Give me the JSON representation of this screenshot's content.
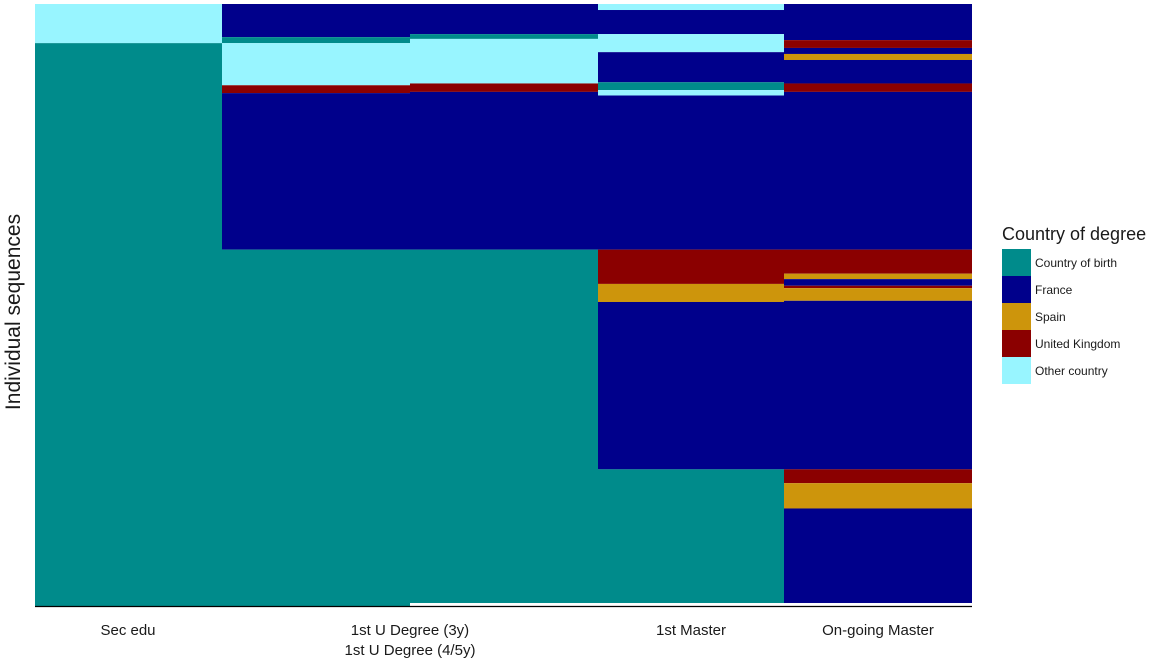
{
  "chart_data": {
    "type": "heatmap",
    "title": "",
    "ylabel": "Individual sequences",
    "xlabel": "",
    "x_ticks": [
      {
        "lines": [
          "Sec edu"
        ]
      },
      {
        "lines": [
          "1st U Degree (3y)",
          "1st U Degree (4/5y)"
        ]
      },
      {
        "lines": [
          "1st Master"
        ]
      },
      {
        "lines": [
          "On-going Master"
        ]
      }
    ],
    "legend": {
      "title": "Country of degree",
      "position": "right",
      "entries": [
        {
          "label": "Country of birth",
          "color": "#008B8B"
        },
        {
          "label": "France",
          "color": "#00008B"
        },
        {
          "label": "Spain",
          "color": "#CD950C"
        },
        {
          "label": "United Kingdom",
          "color": "#8B0000"
        },
        {
          "label": "Other country",
          "color": "#98F5FF"
        }
      ]
    },
    "colors": {
      "Country of birth": "#008B8B",
      "France": "#00008B",
      "Spain": "#CD950C",
      "United Kingdom": "#8B0000",
      "Other country": "#98F5FF"
    },
    "columns": [
      {
        "name": "Sec edu",
        "segments": [
          {
            "category": "Other country",
            "from": 0,
            "to": 6.5
          },
          {
            "category": "Country of birth",
            "from": 6.5,
            "to": 100
          }
        ]
      },
      {
        "name": "1st U Degree (3y)",
        "segments": [
          {
            "category": "France",
            "from": 0,
            "to": 5.5
          },
          {
            "category": "Country of birth",
            "from": 5.5,
            "to": 6.5
          },
          {
            "category": "Other country",
            "from": 6.5,
            "to": 13.5
          },
          {
            "category": "United Kingdom",
            "from": 13.5,
            "to": 14.8
          },
          {
            "category": "France",
            "from": 14.8,
            "to": 40.8
          },
          {
            "category": "Country of birth",
            "from": 40.8,
            "to": 100
          }
        ]
      },
      {
        "name": "1st U Degree (4/5y)",
        "segments": [
          {
            "category": "France",
            "from": 0,
            "to": 5.0
          },
          {
            "category": "Country of birth",
            "from": 5.0,
            "to": 5.8
          },
          {
            "category": "Other country",
            "from": 5.8,
            "to": 13.2
          },
          {
            "category": "United Kingdom",
            "from": 13.2,
            "to": 14.6
          },
          {
            "category": "France",
            "from": 14.6,
            "to": 40.8
          },
          {
            "category": "Country of birth",
            "from": 40.8,
            "to": 99.5
          }
        ]
      },
      {
        "name": "1st Master",
        "segments": [
          {
            "category": "Other country",
            "from": 0,
            "to": 1.0
          },
          {
            "category": "France",
            "from": 1.0,
            "to": 5.0
          },
          {
            "category": "Other country",
            "from": 5.0,
            "to": 8.0
          },
          {
            "category": "France",
            "from": 8.0,
            "to": 13.0
          },
          {
            "category": "Country of birth",
            "from": 13.0,
            "to": 14.3
          },
          {
            "category": "Other country",
            "from": 14.3,
            "to": 15.2
          },
          {
            "category": "France",
            "from": 15.2,
            "to": 40.8
          },
          {
            "category": "United Kingdom",
            "from": 40.8,
            "to": 46.5
          },
          {
            "category": "Spain",
            "from": 46.5,
            "to": 49.5
          },
          {
            "category": "France",
            "from": 49.5,
            "to": 77.3
          },
          {
            "category": "Country of birth",
            "from": 77.3,
            "to": 99.5
          }
        ]
      },
      {
        "name": "On-going Master",
        "segments": [
          {
            "category": "France",
            "from": 0,
            "to": 6.0
          },
          {
            "category": "United Kingdom",
            "from": 6.0,
            "to": 7.3
          },
          {
            "category": "France",
            "from": 7.3,
            "to": 8.3
          },
          {
            "category": "Spain",
            "from": 8.3,
            "to": 9.3
          },
          {
            "category": "France",
            "from": 9.3,
            "to": 13.2
          },
          {
            "category": "United Kingdom",
            "from": 13.2,
            "to": 14.6
          },
          {
            "category": "France",
            "from": 14.6,
            "to": 40.8
          },
          {
            "category": "United Kingdom",
            "from": 40.8,
            "to": 44.8
          },
          {
            "category": "Spain",
            "from": 44.8,
            "to": 45.7
          },
          {
            "category": "France",
            "from": 45.7,
            "to": 46.8
          },
          {
            "category": "United Kingdom",
            "from": 46.8,
            "to": 47.2
          },
          {
            "category": "Spain",
            "from": 47.2,
            "to": 49.3
          },
          {
            "category": "France",
            "from": 49.3,
            "to": 77.3
          },
          {
            "category": "United Kingdom",
            "from": 77.3,
            "to": 79.6
          },
          {
            "category": "Spain",
            "from": 79.6,
            "to": 83.8
          },
          {
            "category": "France",
            "from": 83.8,
            "to": 99.5
          }
        ]
      }
    ]
  }
}
